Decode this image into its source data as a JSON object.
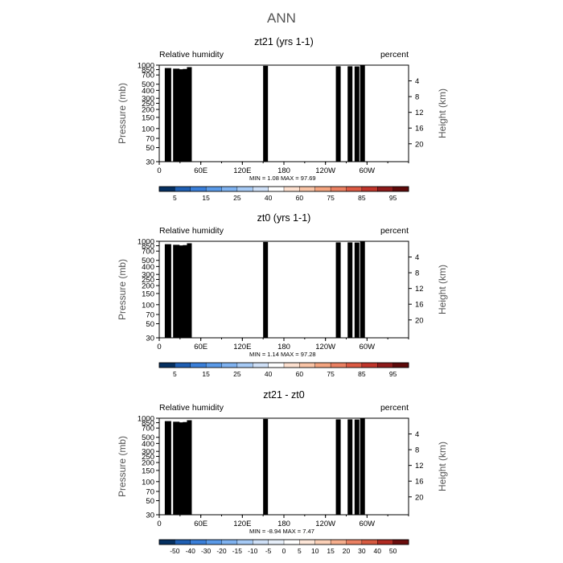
{
  "figure_title": "ANN",
  "colors": {
    "rh_levels": [
      "#053061",
      "#1f5fb3",
      "#3a7fd9",
      "#5a9ae8",
      "#7fb2f0",
      "#a6caf5",
      "#cfe0f7",
      "#ffffff",
      "#fde0cf",
      "#f9c4a6",
      "#f4a47f",
      "#ea8062",
      "#dc5a43",
      "#c0352b",
      "#8e1b1b",
      "#5e0a0a"
    ],
    "diff_levels": [
      "#053061",
      "#1f5fb3",
      "#3a7fd9",
      "#5a9ae8",
      "#7fb2f0",
      "#a6caf5",
      "#cfe0f7",
      "#e6eef9",
      "#ffffff",
      "#fde6d8",
      "#fbd0b7",
      "#f6ae8d",
      "#ea8062",
      "#d65a40",
      "#b02a21",
      "#6b0d0d"
    ],
    "topography": "#000000",
    "frame": "#000000"
  },
  "chart_data": [
    {
      "type": "heatmap",
      "title": "zt21 (yrs 1-1)",
      "left_string": "Relative humidity",
      "right_string": "percent",
      "ylabel": "Pressure (mb)",
      "ylabel_right": "Height (km)",
      "x_tick_labels": [
        "0",
        "60E",
        "120E",
        "180",
        "120W",
        "60W"
      ],
      "x_tick_lons": [
        0,
        60,
        120,
        180,
        240,
        300
      ],
      "xlim": [
        0,
        360
      ],
      "y_tick_labels": [
        "1000",
        "850",
        "700",
        "500",
        "400",
        "300",
        "250",
        "200",
        "150",
        "100",
        "70",
        "50",
        "30"
      ],
      "y_tick_values": [
        1000,
        850,
        700,
        500,
        400,
        300,
        250,
        200,
        150,
        100,
        70,
        50,
        30
      ],
      "ylim": [
        1000,
        30
      ],
      "height_tick_labels": [
        "4",
        "8",
        "12",
        "16",
        "20"
      ],
      "height_tick_values": [
        4,
        8,
        12,
        16,
        20
      ],
      "stats": {
        "min_label": "MIN =",
        "min": "1.08",
        "max_label": "MAX =",
        "max": "97.69"
      },
      "colorbar_labels": [
        "5",
        "15",
        "25",
        "40",
        "60",
        "75",
        "85",
        "95"
      ],
      "colorbar_levels": [
        5,
        10,
        15,
        20,
        25,
        30,
        40,
        50,
        60,
        65,
        70,
        75,
        80,
        85,
        90,
        95
      ]
    },
    {
      "type": "heatmap",
      "title": "zt0 (yrs 1-1)",
      "left_string": "Relative humidity",
      "right_string": "percent",
      "ylabel": "Pressure (mb)",
      "ylabel_right": "Height (km)",
      "x_tick_labels": [
        "0",
        "60E",
        "120E",
        "180",
        "120W",
        "60W"
      ],
      "x_tick_lons": [
        0,
        60,
        120,
        180,
        240,
        300
      ],
      "xlim": [
        0,
        360
      ],
      "y_tick_labels": [
        "1000",
        "850",
        "700",
        "500",
        "400",
        "300",
        "250",
        "200",
        "150",
        "100",
        "70",
        "50",
        "30"
      ],
      "y_tick_values": [
        1000,
        850,
        700,
        500,
        400,
        300,
        250,
        200,
        150,
        100,
        70,
        50,
        30
      ],
      "ylim": [
        1000,
        30
      ],
      "height_tick_labels": [
        "4",
        "8",
        "12",
        "16",
        "20"
      ],
      "height_tick_values": [
        4,
        8,
        12,
        16,
        20
      ],
      "stats": {
        "min_label": "MIN =",
        "min": "1.14",
        "max_label": "MAX =",
        "max": "97.28"
      },
      "colorbar_labels": [
        "5",
        "15",
        "25",
        "40",
        "60",
        "75",
        "85",
        "95"
      ],
      "colorbar_levels": [
        5,
        10,
        15,
        20,
        25,
        30,
        40,
        50,
        60,
        65,
        70,
        75,
        80,
        85,
        90,
        95
      ]
    },
    {
      "type": "heatmap",
      "title": "zt21 - zt0",
      "left_string": "Relative humidity",
      "right_string": "percent",
      "ylabel": "Pressure (mb)",
      "ylabel_right": "Height (km)",
      "x_tick_labels": [
        "0",
        "60E",
        "120E",
        "180",
        "120W",
        "60W"
      ],
      "x_tick_lons": [
        0,
        60,
        120,
        180,
        240,
        300
      ],
      "xlim": [
        0,
        360
      ],
      "y_tick_labels": [
        "1000",
        "850",
        "700",
        "500",
        "400",
        "300",
        "250",
        "200",
        "150",
        "100",
        "70",
        "50",
        "30"
      ],
      "y_tick_values": [
        1000,
        850,
        700,
        500,
        400,
        300,
        250,
        200,
        150,
        100,
        70,
        50,
        30
      ],
      "ylim": [
        1000,
        30
      ],
      "height_tick_labels": [
        "4",
        "8",
        "12",
        "16",
        "20"
      ],
      "height_tick_values": [
        4,
        8,
        12,
        16,
        20
      ],
      "stats": {
        "min_label": "MIN =",
        "min": "-8.94",
        "max_label": "MAX =",
        "max": "7.47"
      },
      "colorbar_labels": [
        "-50",
        "-40",
        "-30",
        "-20",
        "-15",
        "-10",
        "-5",
        "0",
        "5",
        "10",
        "15",
        "20",
        "30",
        "40",
        "50"
      ],
      "colorbar_levels": [
        -50,
        -40,
        -30,
        -20,
        -15,
        -10,
        -5,
        0,
        5,
        10,
        15,
        20,
        30,
        40,
        50
      ]
    }
  ]
}
